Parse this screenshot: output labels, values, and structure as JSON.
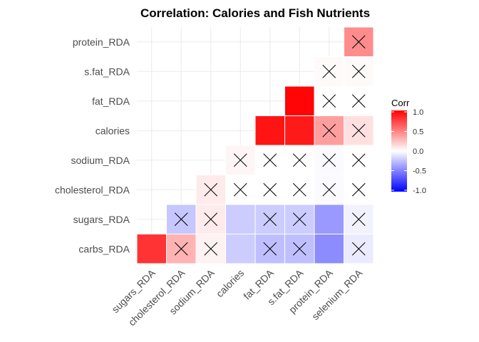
{
  "chart_data": {
    "type": "heatmap",
    "title": "Correlation: Calories and Fish Nutrients",
    "xlabel": "",
    "ylabel": "",
    "x_categories": [
      "sugars_RDA",
      "cholesterol_RDA",
      "sodium_RDA",
      "calories",
      "fat_RDA",
      "s.fat_RDA",
      "protein_RDA",
      "selenium_RDA"
    ],
    "y_categories": [
      "carbs_RDA",
      "sugars_RDA",
      "cholesterol_RDA",
      "sodium_RDA",
      "calories",
      "fat_RDA",
      "s.fat_RDA",
      "protein_RDA"
    ],
    "cells": [
      {
        "x": "sugars_RDA",
        "y": "carbs_RDA",
        "value": 0.8,
        "insignificant": false
      },
      {
        "x": "cholesterol_RDA",
        "y": "carbs_RDA",
        "value": 0.3,
        "insignificant": true
      },
      {
        "x": "sodium_RDA",
        "y": "carbs_RDA",
        "value": 0.05,
        "insignificant": true
      },
      {
        "x": "calories",
        "y": "carbs_RDA",
        "value": -0.2,
        "insignificant": false
      },
      {
        "x": "fat_RDA",
        "y": "carbs_RDA",
        "value": -0.25,
        "insignificant": true
      },
      {
        "x": "s.fat_RDA",
        "y": "carbs_RDA",
        "value": -0.25,
        "insignificant": true
      },
      {
        "x": "protein_RDA",
        "y": "carbs_RDA",
        "value": -0.45,
        "insignificant": false
      },
      {
        "x": "selenium_RDA",
        "y": "carbs_RDA",
        "value": -0.08,
        "insignificant": true
      },
      {
        "x": "cholesterol_RDA",
        "y": "sugars_RDA",
        "value": -0.22,
        "insignificant": true
      },
      {
        "x": "sodium_RDA",
        "y": "sugars_RDA",
        "value": 0.08,
        "insignificant": true
      },
      {
        "x": "calories",
        "y": "sugars_RDA",
        "value": -0.2,
        "insignificant": false
      },
      {
        "x": "fat_RDA",
        "y": "sugars_RDA",
        "value": -0.2,
        "insignificant": true
      },
      {
        "x": "s.fat_RDA",
        "y": "sugars_RDA",
        "value": -0.2,
        "insignificant": true
      },
      {
        "x": "protein_RDA",
        "y": "sugars_RDA",
        "value": -0.4,
        "insignificant": false
      },
      {
        "x": "selenium_RDA",
        "y": "sugars_RDA",
        "value": -0.05,
        "insignificant": true
      },
      {
        "x": "sodium_RDA",
        "y": "cholesterol_RDA",
        "value": 0.08,
        "insignificant": true
      },
      {
        "x": "calories",
        "y": "cholesterol_RDA",
        "value": 0.0,
        "insignificant": true
      },
      {
        "x": "fat_RDA",
        "y": "cholesterol_RDA",
        "value": 0.0,
        "insignificant": true
      },
      {
        "x": "s.fat_RDA",
        "y": "cholesterol_RDA",
        "value": 0.0,
        "insignificant": true
      },
      {
        "x": "protein_RDA",
        "y": "cholesterol_RDA",
        "value": -0.02,
        "insignificant": true
      },
      {
        "x": "selenium_RDA",
        "y": "cholesterol_RDA",
        "value": 0.0,
        "insignificant": true
      },
      {
        "x": "calories",
        "y": "sodium_RDA",
        "value": 0.04,
        "insignificant": true
      },
      {
        "x": "fat_RDA",
        "y": "sodium_RDA",
        "value": 0.0,
        "insignificant": true
      },
      {
        "x": "s.fat_RDA",
        "y": "sodium_RDA",
        "value": 0.0,
        "insignificant": true
      },
      {
        "x": "protein_RDA",
        "y": "sodium_RDA",
        "value": -0.02,
        "insignificant": true
      },
      {
        "x": "selenium_RDA",
        "y": "sodium_RDA",
        "value": 0.0,
        "insignificant": true
      },
      {
        "x": "fat_RDA",
        "y": "calories",
        "value": 0.92,
        "insignificant": false
      },
      {
        "x": "s.fat_RDA",
        "y": "calories",
        "value": 0.9,
        "insignificant": false
      },
      {
        "x": "protein_RDA",
        "y": "calories",
        "value": 0.38,
        "insignificant": true
      },
      {
        "x": "selenium_RDA",
        "y": "calories",
        "value": 0.12,
        "insignificant": true
      },
      {
        "x": "s.fat_RDA",
        "y": "fat_RDA",
        "value": 0.98,
        "insignificant": false
      },
      {
        "x": "protein_RDA",
        "y": "fat_RDA",
        "value": 0.0,
        "insignificant": true
      },
      {
        "x": "selenium_RDA",
        "y": "fat_RDA",
        "value": 0.0,
        "insignificant": true
      },
      {
        "x": "protein_RDA",
        "y": "s.fat_RDA",
        "value": 0.02,
        "insignificant": true
      },
      {
        "x": "selenium_RDA",
        "y": "s.fat_RDA",
        "value": 0.02,
        "insignificant": true
      },
      {
        "x": "selenium_RDA",
        "y": "protein_RDA",
        "value": 0.45,
        "insignificant": true
      }
    ],
    "legend": {
      "title": "Corr",
      "ticks": [
        "1.0",
        "0.5",
        "0.0",
        "-0.5",
        "-1.0"
      ],
      "range": [
        -1,
        1
      ],
      "colors": {
        "low": "#0000ff",
        "mid": "#ffffff",
        "high": "#ff0000"
      },
      "placement": "right"
    },
    "grid": true
  }
}
